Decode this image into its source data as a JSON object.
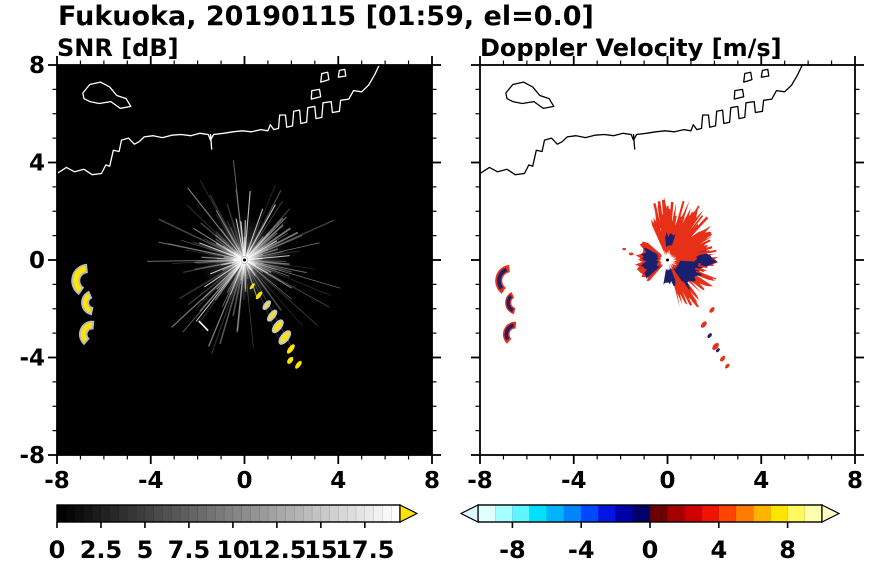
{
  "figure": {
    "title": "Fukuoka, 20190115 [01:59, el=0.0]"
  },
  "panels": [
    {
      "id": "snr",
      "title": "SNR [dB]",
      "x_tick_labels": [
        "-8",
        "-4",
        "0",
        "4",
        "8"
      ],
      "y_tick_labels": [
        "8",
        "4",
        "0",
        "-4",
        "-8"
      ],
      "colorbar_labels": [
        "0",
        "2.5",
        "5",
        "7.5",
        "10",
        "12.5",
        "15",
        "17.5"
      ]
    },
    {
      "id": "vel",
      "title": "Doppler Velocity [m/s]",
      "x_tick_labels": [
        "-8",
        "-4",
        "0",
        "4",
        "8"
      ],
      "y_tick_labels": null,
      "colorbar_labels": [
        "-8",
        "-4",
        "0",
        "4",
        "8"
      ]
    }
  ],
  "geography": {
    "coastlines": [
      {
        "closed": true,
        "points": [
          [
            -6.9,
            6.85
          ],
          [
            -6.6,
            7.2
          ],
          [
            -6.15,
            7.3
          ],
          [
            -5.75,
            7.1
          ],
          [
            -5.45,
            6.75
          ],
          [
            -5.05,
            6.62
          ],
          [
            -4.85,
            6.3
          ],
          [
            -5.3,
            6.22
          ],
          [
            -5.7,
            6.5
          ],
          [
            -6.2,
            6.42
          ],
          [
            -6.6,
            6.5
          ],
          [
            -6.85,
            6.62
          ]
        ]
      },
      {
        "closed": false,
        "points": [
          [
            -8,
            3.55
          ],
          [
            -7.6,
            3.8
          ],
          [
            -7.25,
            3.62
          ],
          [
            -6.85,
            3.72
          ],
          [
            -6.5,
            3.5
          ],
          [
            -6.1,
            3.55
          ],
          [
            -5.92,
            3.9
          ],
          [
            -5.75,
            3.85
          ],
          [
            -5.6,
            4.5
          ],
          [
            -5.35,
            4.45
          ],
          [
            -5.25,
            4.92
          ],
          [
            -4.95,
            5.0
          ],
          [
            -4.7,
            4.75
          ],
          [
            -4.5,
            4.85
          ],
          [
            -4.28,
            5.05
          ],
          [
            -3.9,
            5.1
          ],
          [
            -3.5,
            5.02
          ],
          [
            -3.1,
            5.12
          ],
          [
            -2.7,
            5.15
          ],
          [
            -2.3,
            5.1
          ],
          [
            -1.9,
            5.2
          ],
          [
            -1.55,
            5.15
          ],
          [
            -1.45,
            4.92
          ],
          [
            -1.32,
            5.15
          ],
          [
            -0.9,
            5.2
          ],
          [
            -0.5,
            5.26
          ],
          [
            -0.1,
            5.3
          ],
          [
            0.3,
            5.26
          ],
          [
            0.7,
            5.35
          ],
          [
            1.0,
            5.3
          ],
          [
            1.1,
            5.55
          ],
          [
            1.25,
            5.35
          ],
          [
            1.45,
            5.4
          ],
          [
            1.5,
            5.95
          ],
          [
            1.75,
            5.95
          ],
          [
            1.8,
            5.45
          ],
          [
            2.05,
            5.5
          ],
          [
            2.1,
            6.1
          ],
          [
            2.35,
            6.15
          ],
          [
            2.4,
            5.6
          ],
          [
            2.65,
            5.65
          ],
          [
            2.7,
            6.25
          ],
          [
            3.0,
            6.3
          ],
          [
            3.05,
            5.8
          ],
          [
            3.3,
            5.85
          ],
          [
            3.35,
            6.45
          ],
          [
            3.7,
            6.5
          ],
          [
            3.75,
            6.05
          ],
          [
            4.05,
            6.1
          ],
          [
            4.1,
            6.55
          ],
          [
            4.45,
            6.6
          ],
          [
            4.65,
            6.95
          ],
          [
            5.0,
            6.9
          ],
          [
            5.3,
            7.18
          ],
          [
            5.55,
            7.6
          ],
          [
            5.8,
            8.1
          ]
        ]
      },
      {
        "closed": true,
        "points": [
          [
            2.85,
            6.6
          ],
          [
            2.87,
            6.95
          ],
          [
            3.2,
            7.0
          ],
          [
            3.25,
            6.7
          ],
          [
            3.05,
            6.65
          ]
        ]
      },
      {
        "closed": true,
        "points": [
          [
            3.25,
            7.3
          ],
          [
            3.3,
            7.65
          ],
          [
            3.55,
            7.7
          ],
          [
            3.6,
            7.4
          ],
          [
            3.45,
            7.35
          ]
        ]
      },
      {
        "closed": true,
        "points": [
          [
            4.0,
            7.5
          ],
          [
            4.05,
            7.78
          ],
          [
            4.28,
            7.82
          ],
          [
            4.32,
            7.55
          ]
        ]
      },
      {
        "closed": false,
        "points": [
          [
            -1.45,
            5.15
          ],
          [
            -1.4,
            4.55
          ]
        ]
      }
    ]
  },
  "chart_data": [
    {
      "id": "snr",
      "type": "heatmap",
      "title": "SNR [dB]",
      "xlim": [
        -8,
        8
      ],
      "ylim": [
        -8,
        8
      ],
      "x_ticks": [
        -8,
        -4,
        0,
        4,
        8
      ],
      "y_ticks": [
        -8,
        -4,
        0,
        4,
        8
      ],
      "minor_tick_step": 1,
      "background": "#000000",
      "coast_color": "#ffffff",
      "radar_center": [
        0,
        0
      ],
      "center_marker": {
        "outer": "#ffffff",
        "inner": "#000000"
      },
      "clutter_streaks": {
        "count": 175,
        "bright_count": 12,
        "max_radius": 3.8,
        "color": "#ffffff"
      },
      "echoes": [
        {
          "kind": "arc",
          "cx": -6.7,
          "cy": -0.85,
          "r": 0.65,
          "a0": 95,
          "a1": 235,
          "w": 0.3,
          "color": "#ffe400",
          "halo": "#bbbbbb"
        },
        {
          "kind": "arc",
          "cx": -6.45,
          "cy": -1.75,
          "r": 0.48,
          "a0": 115,
          "a1": 258,
          "w": 0.26,
          "color": "#ffe400",
          "halo": "#bbbbbb"
        },
        {
          "kind": "arc",
          "cx": -6.5,
          "cy": -3.05,
          "r": 0.52,
          "a0": 85,
          "a1": 228,
          "w": 0.28,
          "color": "#ffe400",
          "halo": "#bbbbbb"
        },
        {
          "kind": "ellipse",
          "cx": 0.33,
          "cy": -1.08,
          "rx": 0.16,
          "ry": 0.06,
          "rot": -52,
          "color": "#ffe400"
        },
        {
          "kind": "ellipse",
          "cx": 0.62,
          "cy": -1.45,
          "rx": 0.2,
          "ry": 0.08,
          "rot": -52,
          "color": "#ffe400"
        },
        {
          "kind": "ellipse",
          "cx": 0.95,
          "cy": -1.85,
          "rx": 0.2,
          "ry": 0.08,
          "rot": -52,
          "color": "#ffe400",
          "halo": "#c8c8c8"
        },
        {
          "kind": "ellipse",
          "cx": 1.18,
          "cy": -2.28,
          "rx": 0.26,
          "ry": 0.1,
          "rot": -52,
          "color": "#ffe400",
          "halo": "#c8c8c8"
        },
        {
          "kind": "ellipse",
          "cx": 1.42,
          "cy": -2.72,
          "rx": 0.3,
          "ry": 0.13,
          "rot": -52,
          "color": "#ffe400",
          "halo": "#c8c8c8"
        },
        {
          "kind": "ellipse",
          "cx": 1.72,
          "cy": -3.18,
          "rx": 0.32,
          "ry": 0.14,
          "rot": -52,
          "color": "#ffe400",
          "halo": "#c8c8c8"
        },
        {
          "kind": "ellipse",
          "cx": 1.98,
          "cy": -3.65,
          "rx": 0.24,
          "ry": 0.1,
          "rot": -52,
          "color": "#ffe400"
        },
        {
          "kind": "ellipse",
          "cx": 1.95,
          "cy": -4.12,
          "rx": 0.17,
          "ry": 0.1,
          "rot": -52,
          "color": "#ffe400"
        },
        {
          "kind": "ellipse",
          "cx": 2.3,
          "cy": -4.3,
          "rx": 0.2,
          "ry": 0.09,
          "rot": -52,
          "color": "#ffe400"
        },
        {
          "kind": "line",
          "x1": -1.95,
          "y1": -2.5,
          "x2": -1.55,
          "y2": -2.9,
          "color": "#ffffff",
          "width": 1.5
        }
      ],
      "colorbar": {
        "range": [
          0,
          19.5
        ],
        "cell_step": 0.5,
        "style": "grayscale",
        "tick_values": [
          0,
          2.5,
          5,
          7.5,
          10,
          12.5,
          15,
          17.5
        ],
        "arrow_right": "#ffe400"
      }
    },
    {
      "id": "vel",
      "type": "heatmap",
      "title": "Doppler Velocity [m/s]",
      "xlim": [
        -8,
        8
      ],
      "ylim": [
        -8,
        8
      ],
      "x_ticks": [
        -8,
        -4,
        0,
        4,
        8
      ],
      "y_ticks": [
        -8,
        -4,
        0,
        4,
        8
      ],
      "minor_tick_step": 1,
      "background": "#ffffff",
      "coast_color": "#000000",
      "radar_center": [
        0,
        0
      ],
      "center_marker": {
        "inner": "#000000"
      },
      "main_echo": {
        "center": [
          0,
          0
        ],
        "az0": -75,
        "az1": 115,
        "r_out_base": 1.6,
        "r_out_var": 0.6,
        "spike_az0": 40,
        "spike_az1": 105,
        "spike_len": 2.4,
        "color": "#e83018",
        "navy": "#1a1f6e",
        "red_patches": [
          {
            "az0": 140,
            "az1": 230,
            "r0": 0.3,
            "r1": 1.25
          }
        ],
        "navy_patches": [
          {
            "az0": -55,
            "az1": -2,
            "r0": 0.5,
            "r1": 1.45
          },
          {
            "az0": -100,
            "az1": -68,
            "r0": 0.4,
            "r1": 1.0
          },
          {
            "az0": -10,
            "az1": 14,
            "r0": 1.35,
            "r1": 1.85
          },
          {
            "az0": 72,
            "az1": 98,
            "r0": 0.6,
            "r1": 1.0
          },
          {
            "az0": 152,
            "az1": 222,
            "r0": 0.45,
            "r1": 1.05
          }
        ],
        "spike_sets": [
          {
            "az0": 40,
            "az1": 105,
            "count": 16,
            "rmin": 1.8,
            "rmax": 2.6
          },
          {
            "az0": -70,
            "az1": 30,
            "count": 10,
            "rmin": 1.6,
            "rmax": 2.3
          }
        ]
      },
      "echoes": [
        {
          "kind": "arc",
          "cx": -6.7,
          "cy": -0.85,
          "r": 0.65,
          "a0": 95,
          "a1": 235,
          "w": 0.3,
          "color": "#e83018"
        },
        {
          "kind": "arc",
          "cx": -6.7,
          "cy": -0.85,
          "r": 0.57,
          "a0": 110,
          "a1": 220,
          "w": 0.16,
          "color": "#1a1f6e"
        },
        {
          "kind": "arc",
          "cx": -6.45,
          "cy": -1.75,
          "r": 0.48,
          "a0": 115,
          "a1": 258,
          "w": 0.26,
          "color": "#e83018"
        },
        {
          "kind": "arc",
          "cx": -6.45,
          "cy": -1.75,
          "r": 0.42,
          "a0": 130,
          "a1": 245,
          "w": 0.14,
          "color": "#1a1f6e"
        },
        {
          "kind": "arc",
          "cx": -6.5,
          "cy": -3.05,
          "r": 0.52,
          "a0": 85,
          "a1": 228,
          "w": 0.28,
          "color": "#e83018"
        },
        {
          "kind": "arc",
          "cx": -6.5,
          "cy": -3.05,
          "r": 0.45,
          "a0": 100,
          "a1": 212,
          "w": 0.15,
          "color": "#1a1f6e"
        },
        {
          "kind": "ellipse",
          "cx": 1.9,
          "cy": -2.05,
          "rx": 0.14,
          "ry": 0.08,
          "rot": -50,
          "color": "#e83018"
        },
        {
          "kind": "ellipse",
          "cx": 1.55,
          "cy": -2.65,
          "rx": 0.16,
          "ry": 0.09,
          "rot": -50,
          "color": "#e83018"
        },
        {
          "kind": "ellipse",
          "cx": 1.8,
          "cy": -3.1,
          "rx": 0.12,
          "ry": 0.07,
          "rot": -50,
          "color": "#1a1f6e"
        },
        {
          "kind": "ellipse",
          "cx": 2.05,
          "cy": -3.55,
          "rx": 0.18,
          "ry": 0.1,
          "rot": -50,
          "color": "#e83018"
        },
        {
          "kind": "ellipse",
          "cx": 2.15,
          "cy": -3.7,
          "rx": 0.1,
          "ry": 0.06,
          "rot": -50,
          "color": "#1a1f6e"
        },
        {
          "kind": "ellipse",
          "cx": 2.35,
          "cy": -4.05,
          "rx": 0.14,
          "ry": 0.08,
          "rot": -50,
          "color": "#e83018"
        },
        {
          "kind": "ellipse",
          "cx": 2.55,
          "cy": -4.35,
          "rx": 0.12,
          "ry": 0.07,
          "rot": -50,
          "color": "#e83018"
        },
        {
          "kind": "ellipse",
          "cx": -1.55,
          "cy": 0.25,
          "rx": 0.1,
          "ry": 0.06,
          "rot": 0,
          "color": "#e83018"
        },
        {
          "kind": "ellipse",
          "cx": -1.85,
          "cy": 0.45,
          "rx": 0.08,
          "ry": 0.05,
          "rot": 0,
          "color": "#e83018"
        }
      ],
      "colorbar": {
        "range": [
          -10,
          10
        ],
        "cell_step": 1,
        "style": "cells",
        "cell_colors": [
          "#e0ffff",
          "#a8ffff",
          "#60f4ff",
          "#00e0ff",
          "#00b4ff",
          "#0084ff",
          "#0048ff",
          "#0014e4",
          "#0000a8",
          "#00006a",
          "#6a0000",
          "#a40000",
          "#d00000",
          "#f01400",
          "#ff4400",
          "#ff7c00",
          "#ffb400",
          "#ffe400",
          "#fff860",
          "#ffffb0"
        ],
        "tick_values": [
          -8,
          -4,
          0,
          4,
          8
        ],
        "arrow_left": "#dff8ff",
        "arrow_right": "#ffffc8"
      }
    }
  ]
}
